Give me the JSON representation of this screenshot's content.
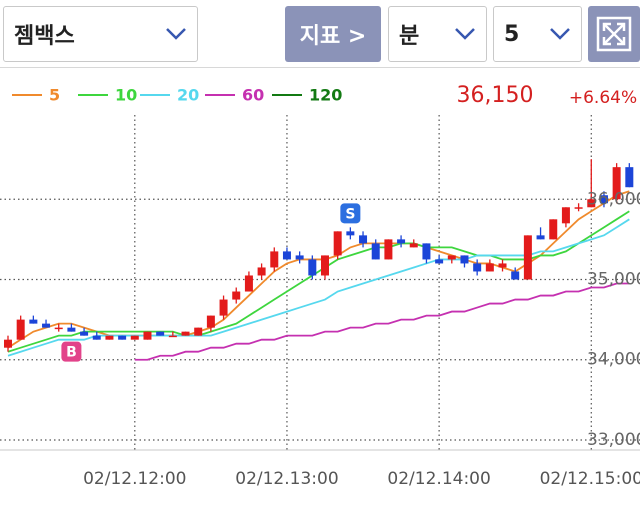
{
  "toolbar": {
    "stock": "젬백스",
    "indicator_button": "지표 >",
    "period_unit": "분",
    "period_value": "5"
  },
  "quote": {
    "price": "36,150",
    "change": "+6.64%"
  },
  "chart_data": {
    "type": "candlestick",
    "categories": [
      null,
      null,
      null,
      null,
      null,
      null,
      null,
      null,
      null,
      null,
      "02/12.12:00",
      null,
      null,
      null,
      null,
      null,
      null,
      null,
      null,
      null,
      null,
      null,
      "02/12.13:00",
      null,
      null,
      null,
      null,
      null,
      null,
      null,
      null,
      null,
      null,
      null,
      "02/12.14:00",
      null,
      null,
      null,
      null,
      null,
      null,
      null,
      null,
      null,
      null,
      null,
      "02/12.15:00",
      null,
      null,
      null
    ],
    "open": [
      34150,
      34250,
      34500,
      34450,
      34400,
      34400,
      34350,
      34300,
      34250,
      34300,
      34250,
      34250,
      34350,
      34300,
      34300,
      34300,
      34400,
      34550,
      34750,
      34850,
      35050,
      35150,
      35350,
      35300,
      35250,
      35050,
      35300,
      35600,
      35550,
      35450,
      35250,
      35500,
      35400,
      35450,
      35250,
      35250,
      35300,
      35200,
      35100,
      35150,
      35100,
      35000,
      35550,
      35500,
      35700,
      35900,
      35900,
      36050,
      36000,
      36400
    ],
    "high": [
      34300,
      34550,
      34550,
      34500,
      34450,
      34450,
      34400,
      34350,
      34300,
      34300,
      34300,
      34350,
      34350,
      34350,
      34350,
      34400,
      34550,
      34800,
      34900,
      35100,
      35200,
      35400,
      35400,
      35350,
      35300,
      35300,
      35600,
      35650,
      35600,
      35500,
      35500,
      35550,
      35500,
      35450,
      35300,
      35300,
      35300,
      35250,
      35250,
      35250,
      35150,
      35550,
      35650,
      35750,
      35900,
      35950,
      36500,
      36100,
      36450,
      36450
    ],
    "low": [
      34100,
      34250,
      34450,
      34400,
      34350,
      34350,
      34300,
      34250,
      34250,
      34250,
      34250,
      34250,
      34300,
      34300,
      34300,
      34300,
      34350,
      34500,
      34700,
      34850,
      35000,
      35100,
      35250,
      35200,
      35000,
      35000,
      35250,
      35500,
      35400,
      35250,
      35250,
      35400,
      35400,
      35200,
      35200,
      35200,
      35150,
      35050,
      35100,
      35100,
      35000,
      35000,
      35500,
      35500,
      35650,
      35850,
      35900,
      35900,
      35950,
      36150
    ],
    "close": [
      34250,
      34500,
      34450,
      34400,
      34400,
      34350,
      34300,
      34250,
      34300,
      34250,
      34300,
      34350,
      34300,
      34300,
      34350,
      34400,
      34550,
      34750,
      34850,
      35050,
      35150,
      35350,
      35250,
      35250,
      35050,
      35300,
      35600,
      35550,
      35450,
      35250,
      35500,
      35450,
      35450,
      35250,
      35200,
      35300,
      35200,
      35100,
      35200,
      35200,
      35000,
      35550,
      35500,
      35750,
      35900,
      35900,
      36000,
      35950,
      36400,
      36150
    ],
    "up_color": "#e31b1b",
    "down_color": "#1c45d8",
    "series": [
      {
        "name": "5",
        "color": "#f08a2c",
        "values": [
          34150,
          34250,
          34350,
          34400,
          34450,
          34450,
          34400,
          34350,
          34300,
          34300,
          34300,
          34300,
          34300,
          34300,
          34300,
          34350,
          34400,
          34500,
          34650,
          34800,
          34950,
          35100,
          35200,
          35250,
          35250,
          35250,
          35300,
          35400,
          35450,
          35450,
          35450,
          35450,
          35450,
          35400,
          35350,
          35300,
          35250,
          35200,
          35200,
          35150,
          35100,
          35200,
          35300,
          35450,
          35600,
          35750,
          35850,
          35950,
          36050,
          36100
        ]
      },
      {
        "name": "10",
        "color": "#3ed63e",
        "values": [
          34100,
          34150,
          34200,
          34250,
          34300,
          34300,
          34350,
          34350,
          34350,
          34350,
          34350,
          34350,
          34350,
          34350,
          34300,
          34300,
          34350,
          34400,
          34450,
          34550,
          34650,
          34750,
          34850,
          34950,
          35050,
          35150,
          35250,
          35300,
          35350,
          35400,
          35400,
          35450,
          35450,
          35400,
          35400,
          35400,
          35350,
          35300,
          35300,
          35250,
          35250,
          35250,
          35300,
          35300,
          35350,
          35450,
          35550,
          35650,
          35750,
          35850
        ]
      },
      {
        "name": "20",
        "color": "#56d8ee",
        "values": [
          34050,
          34100,
          34150,
          34200,
          34250,
          34250,
          34250,
          34300,
          34300,
          34300,
          34300,
          34300,
          34300,
          34300,
          34300,
          34300,
          34300,
          34350,
          34400,
          34450,
          34500,
          34550,
          34600,
          34650,
          34700,
          34750,
          34850,
          34900,
          34950,
          35000,
          35050,
          35100,
          35150,
          35200,
          35250,
          35250,
          35250,
          35300,
          35300,
          35300,
          35300,
          35300,
          35350,
          35350,
          35400,
          35450,
          35500,
          35550,
          35650,
          35750
        ]
      },
      {
        "name": "60",
        "color": "#c530b0",
        "values": [
          null,
          null,
          null,
          null,
          null,
          null,
          null,
          null,
          null,
          null,
          34000,
          34000,
          34050,
          34050,
          34100,
          34100,
          34150,
          34150,
          34200,
          34200,
          34250,
          34250,
          34300,
          34300,
          34300,
          34350,
          34350,
          34400,
          34400,
          34450,
          34450,
          34500,
          34500,
          34550,
          34550,
          34600,
          34600,
          34650,
          34700,
          34700,
          34750,
          34750,
          34800,
          34800,
          34850,
          34850,
          34900,
          34900,
          34950,
          34950
        ]
      },
      {
        "name": "120",
        "color": "#137a13",
        "values": [
          null,
          null,
          null,
          null,
          null,
          null,
          null,
          null,
          null,
          null,
          null,
          null,
          null,
          null,
          null,
          null,
          null,
          null,
          null,
          null,
          null,
          null,
          null,
          null,
          null,
          null,
          null,
          null,
          null,
          null,
          null,
          null,
          null,
          null,
          null,
          null,
          null,
          null,
          null,
          null,
          null,
          null,
          null,
          null,
          null,
          null,
          null,
          null,
          null,
          null
        ]
      }
    ],
    "signals": [
      {
        "label": "B",
        "at": 5,
        "side": "buy",
        "color": "#e2438a"
      },
      {
        "label": "S",
        "at": 27,
        "side": "sell",
        "color": "#2c6fe0"
      }
    ],
    "ylim": [
      32875,
      37050
    ],
    "yticks": [
      {
        "value": 33000,
        "label": "33,000"
      },
      {
        "value": 34000,
        "label": "34,000"
      },
      {
        "value": 35000,
        "label": "35,000"
      },
      {
        "value": 36000,
        "label": "36,000"
      }
    ],
    "grid": true
  }
}
